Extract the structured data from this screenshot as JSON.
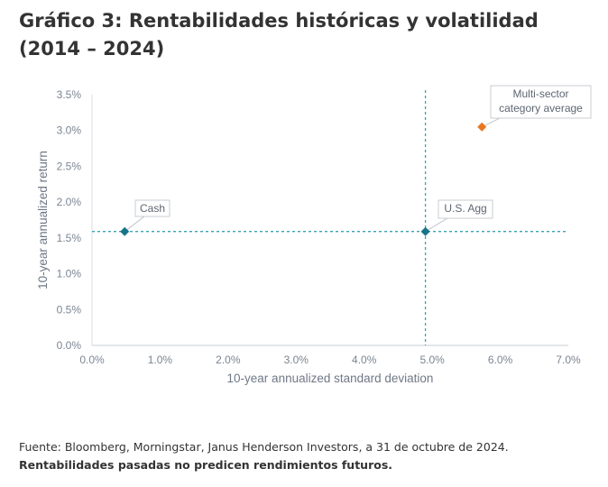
{
  "title": "Gráfico 3: Rentabilidades históricas y volatilidad (2014 – 2024)",
  "chart_data": {
    "type": "scatter",
    "xlabel": "10-year annualized standard deviation",
    "ylabel": "10-year annualized return",
    "xlim": [
      0,
      7
    ],
    "ylim": [
      0,
      3.5
    ],
    "xticks": [
      "0.0%",
      "1.0%",
      "2.0%",
      "3.0%",
      "4.0%",
      "5.0%",
      "6.0%",
      "7.0%"
    ],
    "yticks": [
      "0.0%",
      "0.5%",
      "1.0%",
      "1.5%",
      "2.0%",
      "2.5%",
      "3.0%",
      "3.5%"
    ],
    "points": [
      {
        "label": "Cash",
        "x": 0.48,
        "y": 1.59,
        "color": "#17758a"
      },
      {
        "label": "U.S. Agg",
        "x": 4.9,
        "y": 1.59,
        "color": "#17758a"
      },
      {
        "label": "Multi-sector category average",
        "label_lines": [
          "Multi-sector",
          "category average"
        ],
        "x": 5.73,
        "y": 3.05,
        "color": "#e87722"
      }
    ],
    "reference_lines": {
      "x": 4.9,
      "y": 1.59,
      "color": "#3aa3b0"
    }
  },
  "footer": {
    "source": "Fuente: Bloomberg, Morningstar, Janus Henderson Investors, a 31 de octubre de 2024.",
    "disclaimer": "Rentabilidades pasadas no predicen rendimientos futuros."
  }
}
